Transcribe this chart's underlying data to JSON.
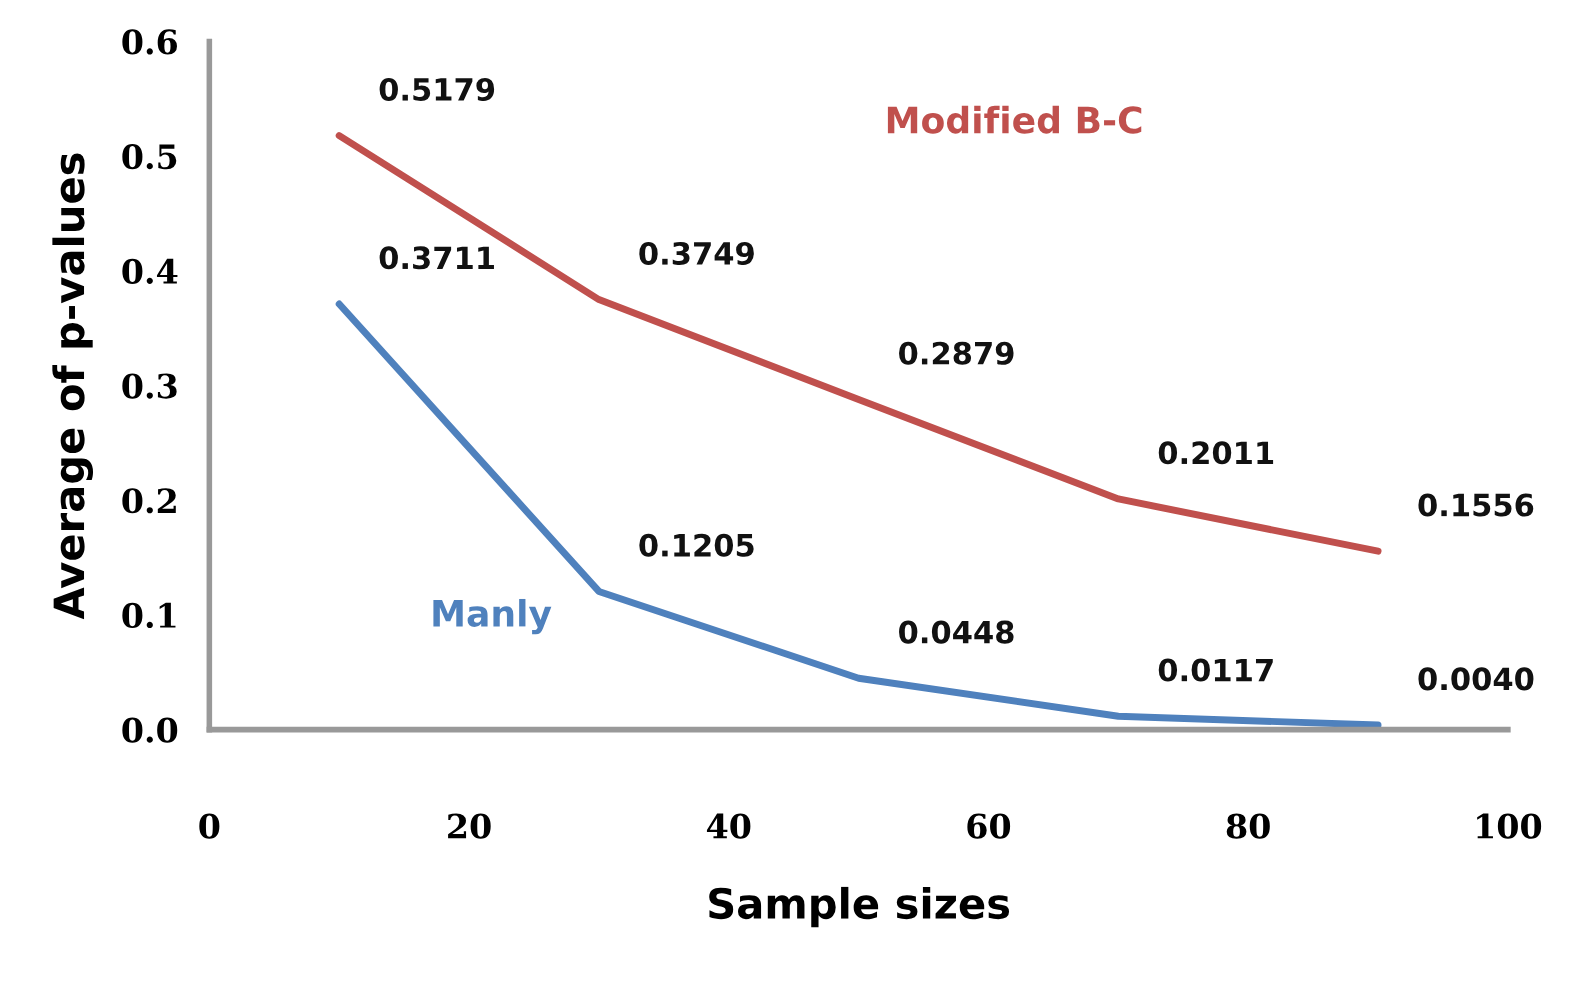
{
  "chart_data": {
    "type": "line",
    "xlabel": "Sample sizes",
    "ylabel": "Average of p-values",
    "x": [
      10,
      30,
      50,
      70,
      90
    ],
    "series": [
      {
        "name": "Modified B-C",
        "color": "#c0504d",
        "values": [
          0.5179,
          0.3749,
          0.2879,
          0.2011,
          0.1556
        ],
        "value_labels": [
          "0.5179",
          "0.3749",
          "0.2879",
          "0.2011",
          "0.1556"
        ]
      },
      {
        "name": "Manly",
        "color": "#4f81bd",
        "values": [
          0.3711,
          0.1205,
          0.0448,
          0.0117,
          0.004
        ],
        "value_labels": [
          "0.3711",
          "0.1205",
          "0.0448",
          "0.0117",
          "0.0040"
        ]
      }
    ],
    "xlim": [
      0,
      100
    ],
    "xticks": [
      0,
      20,
      40,
      60,
      80,
      100
    ],
    "ylim": [
      0,
      0.6
    ],
    "yticks": [
      {
        "value": 0,
        "label": "0.0"
      },
      {
        "value": 0.1,
        "label": "0.1"
      },
      {
        "value": 0.2,
        "label": "0.2"
      },
      {
        "value": 0.3,
        "label": "0.3"
      },
      {
        "value": 0.4,
        "label": "0.4"
      },
      {
        "value": 0.5,
        "label": "0.5"
      },
      {
        "value": 0.6,
        "label": "0.6"
      }
    ],
    "grid": false,
    "legend": false,
    "marker": "none",
    "line_style": "solid"
  }
}
